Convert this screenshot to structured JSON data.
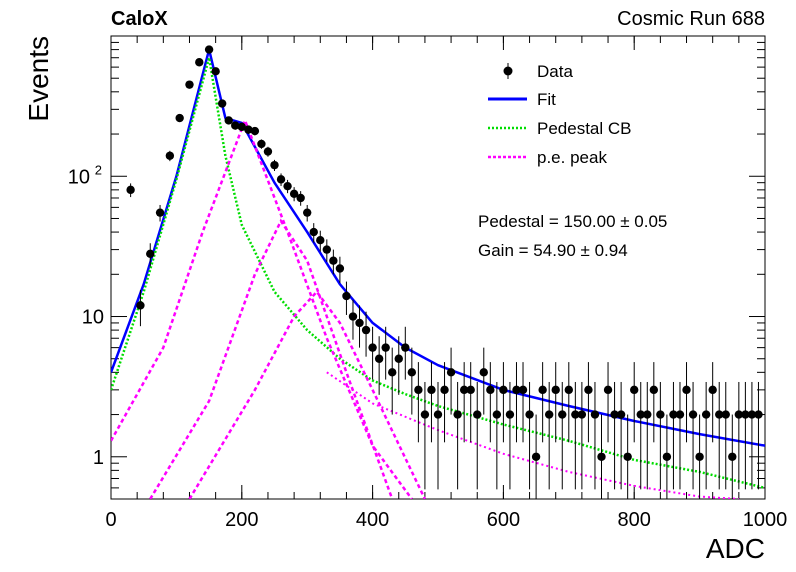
{
  "header": {
    "experiment": "CaloX",
    "run": "Cosmic Run 688"
  },
  "stats": {
    "pedestal": "Pedestal = 150.00 ± 0.05",
    "gain": "Gain = 54.90 ± 0.94"
  },
  "colors": {
    "data": "#000000",
    "fit": "#0000ff",
    "pedestal": "#00dd00",
    "pe": "#ff00ff"
  },
  "chart_data": {
    "type": "scatter",
    "xlabel": "ADC",
    "ylabel": "Events",
    "xlim": [
      0,
      1000
    ],
    "ylim": [
      0.5,
      1000
    ],
    "y_scale": "log",
    "grid": false,
    "legend_position": "top-right",
    "x_ticks": [
      "0",
      "200",
      "400",
      "600",
      "800",
      "1000"
    ],
    "y_ticks": [
      {
        "value": 1,
        "label": "1"
      },
      {
        "value": 10,
        "label": "10"
      },
      {
        "value": 100,
        "label": "10",
        "sup": "2"
      }
    ],
    "legend": [
      "Data",
      "Fit",
      "Pedestal CB",
      "p.e. peak"
    ],
    "pedestal_mean": 150.0,
    "gain": 54.9,
    "series": [
      {
        "name": "Data",
        "kind": "points",
        "x": [
          30,
          45,
          60,
          75,
          90,
          105,
          120,
          135,
          150,
          160,
          170,
          180,
          190,
          200,
          210,
          220,
          230,
          240,
          250,
          260,
          270,
          280,
          290,
          300,
          310,
          320,
          330,
          340,
          350,
          360,
          370,
          380,
          390,
          400,
          410,
          420,
          430,
          440,
          450,
          460,
          470,
          480,
          490,
          500,
          510,
          520,
          530,
          540,
          550,
          560,
          570,
          580,
          590,
          600,
          610,
          620,
          630,
          640,
          650,
          660,
          670,
          680,
          690,
          700,
          710,
          720,
          730,
          740,
          750,
          760,
          770,
          780,
          790,
          800,
          810,
          820,
          830,
          840,
          850,
          860,
          870,
          880,
          890,
          900,
          910,
          920,
          930,
          940,
          950,
          960,
          970,
          980,
          990
        ],
        "y": [
          80,
          12,
          28,
          55,
          140,
          260,
          450,
          650,
          800,
          560,
          330,
          250,
          230,
          225,
          215,
          210,
          170,
          150,
          120,
          95,
          85,
          75,
          70,
          55,
          40,
          35,
          30,
          25,
          22,
          14,
          10,
          9,
          8,
          6,
          5,
          6,
          4,
          5,
          6,
          4,
          3,
          2,
          3,
          2,
          3,
          4,
          2,
          3,
          3,
          2,
          4,
          3,
          2,
          3,
          2,
          3,
          3,
          2,
          1,
          3,
          2,
          3,
          2,
          3,
          2,
          2,
          3,
          2,
          1,
          3,
          2,
          2,
          1,
          3,
          2,
          2,
          3,
          2,
          1,
          2,
          2,
          3,
          2,
          1,
          2,
          3,
          2,
          2,
          1,
          2,
          2,
          2,
          2
        ]
      },
      {
        "name": "Fit",
        "kind": "line",
        "x": [
          0,
          50,
          100,
          150,
          175,
          200,
          250,
          300,
          350,
          400,
          450,
          500,
          600,
          700,
          800,
          900,
          1000
        ],
        "y": [
          4,
          17,
          100,
          800,
          260,
          240,
          90,
          40,
          17,
          9,
          6,
          4.5,
          3,
          2.3,
          1.8,
          1.45,
          1.2
        ]
      },
      {
        "name": "Pedestal CB",
        "kind": "dotted",
        "x": [
          0,
          50,
          100,
          150,
          175,
          200,
          250,
          300,
          350,
          400,
          450,
          500,
          600,
          700,
          800,
          900,
          1000
        ],
        "y": [
          3,
          15,
          95,
          700,
          140,
          45,
          15,
          8,
          5,
          3.5,
          2.8,
          2.3,
          1.7,
          1.3,
          0.95,
          0.78,
          0.6
        ]
      },
      {
        "name": "p.e. peak",
        "kind": "dotted",
        "components": [
          {
            "x": [
              0,
              80,
              140,
              204.9,
              270,
              330,
              400,
              460
            ],
            "y": [
              1.3,
              6,
              40,
              250,
              40,
              7,
              1.2,
              0.5
            ]
          },
          {
            "x": [
              60,
              150,
              220,
              259.8,
              300,
              360,
              430
            ],
            "y": [
              0.5,
              2.5,
              20,
              48,
              25,
              4,
              0.5
            ]
          },
          {
            "x": [
              120,
              220,
              280,
              314.7,
              350,
              400,
              480
            ],
            "y": [
              0.5,
              3,
              10,
              15,
              9,
              3,
              0.5
            ]
          }
        ],
        "tail": {
          "x": [
            330,
            400,
            500,
            600,
            700,
            800,
            900,
            960
          ],
          "y": [
            4,
            2.4,
            1.55,
            1.05,
            0.78,
            0.62,
            0.52,
            0.5
          ]
        }
      }
    ]
  }
}
